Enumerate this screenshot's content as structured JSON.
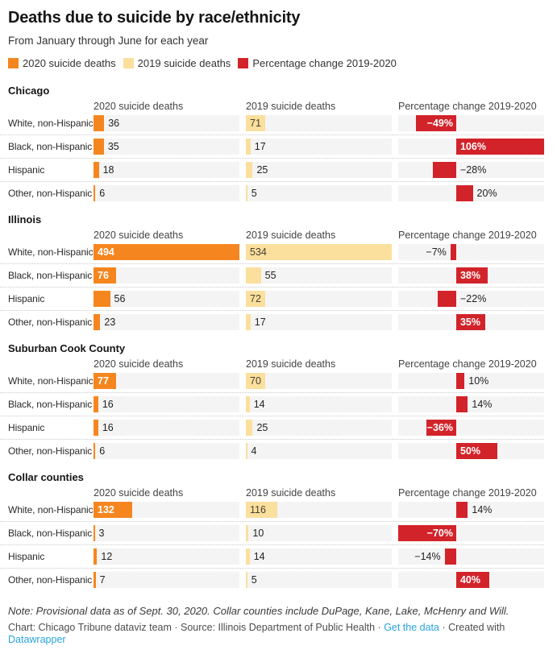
{
  "title": "Deaths due to suicide by race/ethnicity",
  "subtitle": "From January through June for each year",
  "legend": [
    {
      "label": "2020 suicide deaths",
      "color": "#f5861f"
    },
    {
      "label": "2019 suicide deaths",
      "color": "#fbdf9d"
    },
    {
      "label": "Percentage change 2019-2020",
      "color": "#d2232a"
    }
  ],
  "columns": [
    "2020 suicide deaths",
    "2019 suicide deaths",
    "Percentage change 2019-2020"
  ],
  "colors": {
    "bar_2020": "#f5861f",
    "bar_2019": "#fbdf9d",
    "bar_pct": "#d2232a",
    "track": "#f4f4f4",
    "link": "#29a3dc"
  },
  "chart_data": {
    "type": "bar",
    "column_max": {
      "deaths_2020": 494,
      "deaths_2019": 534
    },
    "pct_axis": {
      "min": -70,
      "max": 106
    },
    "sections": [
      {
        "name": "Chicago",
        "rows": [
          {
            "label": "White, non-Hispanic",
            "deaths_2020": 36,
            "label_2020_inside": false,
            "deaths_2019": 71,
            "label_2019_inside": true,
            "pct_change": -49,
            "pct_label": "−49%",
            "pct_label_pos": "inside"
          },
          {
            "label": "Black, non-Hispanic",
            "deaths_2020": 35,
            "label_2020_inside": false,
            "deaths_2019": 17,
            "label_2019_inside": false,
            "pct_change": 106,
            "pct_label": "106%",
            "pct_label_pos": "inside"
          },
          {
            "label": "Hispanic",
            "deaths_2020": 18,
            "label_2020_inside": false,
            "deaths_2019": 25,
            "label_2019_inside": false,
            "pct_change": -28,
            "pct_label": "−28%",
            "pct_label_pos": "right"
          },
          {
            "label": "Other, non-Hispanic",
            "deaths_2020": 6,
            "label_2020_inside": false,
            "deaths_2019": 5,
            "label_2019_inside": false,
            "pct_change": 20,
            "pct_label": "20%",
            "pct_label_pos": "right"
          }
        ]
      },
      {
        "name": "Illinois",
        "rows": [
          {
            "label": "White, non-Hispanic",
            "deaths_2020": 494,
            "label_2020_inside": true,
            "deaths_2019": 534,
            "label_2019_inside": true,
            "pct_change": -7,
            "pct_label": "−7%",
            "pct_label_pos": "left"
          },
          {
            "label": "Black, non-Hispanic",
            "deaths_2020": 76,
            "label_2020_inside": true,
            "deaths_2019": 55,
            "label_2019_inside": false,
            "pct_change": 38,
            "pct_label": "38%",
            "pct_label_pos": "inside"
          },
          {
            "label": "Hispanic",
            "deaths_2020": 56,
            "label_2020_inside": false,
            "deaths_2019": 72,
            "label_2019_inside": true,
            "pct_change": -22,
            "pct_label": "−22%",
            "pct_label_pos": "right"
          },
          {
            "label": "Other, non-Hispanic",
            "deaths_2020": 23,
            "label_2020_inside": false,
            "deaths_2019": 17,
            "label_2019_inside": false,
            "pct_change": 35,
            "pct_label": "35%",
            "pct_label_pos": "inside"
          }
        ]
      },
      {
        "name": "Suburban Cook County",
        "rows": [
          {
            "label": "White, non-Hispanic",
            "deaths_2020": 77,
            "label_2020_inside": true,
            "deaths_2019": 70,
            "label_2019_inside": true,
            "pct_change": 10,
            "pct_label": "10%",
            "pct_label_pos": "right"
          },
          {
            "label": "Black, non-Hispanic",
            "deaths_2020": 16,
            "label_2020_inside": false,
            "deaths_2019": 14,
            "label_2019_inside": false,
            "pct_change": 14,
            "pct_label": "14%",
            "pct_label_pos": "right"
          },
          {
            "label": "Hispanic",
            "deaths_2020": 16,
            "label_2020_inside": false,
            "deaths_2019": 25,
            "label_2019_inside": false,
            "pct_change": -36,
            "pct_label": "−36%",
            "pct_label_pos": "inside"
          },
          {
            "label": "Other, non-Hispanic",
            "deaths_2020": 6,
            "label_2020_inside": false,
            "deaths_2019": 4,
            "label_2019_inside": false,
            "pct_change": 50,
            "pct_label": "50%",
            "pct_label_pos": "inside"
          }
        ]
      },
      {
        "name": "Collar counties",
        "rows": [
          {
            "label": "White, non-Hispanic",
            "deaths_2020": 132,
            "label_2020_inside": true,
            "deaths_2019": 116,
            "label_2019_inside": true,
            "pct_change": 14,
            "pct_label": "14%",
            "pct_label_pos": "right"
          },
          {
            "label": "Black, non-Hispanic",
            "deaths_2020": 3,
            "label_2020_inside": false,
            "deaths_2019": 10,
            "label_2019_inside": false,
            "pct_change": -70,
            "pct_label": "−70%",
            "pct_label_pos": "inside"
          },
          {
            "label": "Hispanic",
            "deaths_2020": 12,
            "label_2020_inside": false,
            "deaths_2019": 14,
            "label_2019_inside": false,
            "pct_change": -14,
            "pct_label": "−14%",
            "pct_label_pos": "left"
          },
          {
            "label": "Other, non-Hispanic",
            "deaths_2020": 7,
            "label_2020_inside": false,
            "deaths_2019": 5,
            "label_2019_inside": false,
            "pct_change": 40,
            "pct_label": "40%",
            "pct_label_pos": "inside"
          }
        ]
      }
    ]
  },
  "footer": {
    "note": "Note: Provisional data as of Sept. 30, 2020. Collar counties include DuPage, Kane, Lake, McHenry and Will.",
    "credit_prefix": "Chart: Chicago Tribune dataviz team · Source: Illinois Department of Public Health · ",
    "credit_link_data": "Get the data",
    "credit_middle": " · Created with ",
    "credit_link_datawrapper": "Datawrapper"
  }
}
